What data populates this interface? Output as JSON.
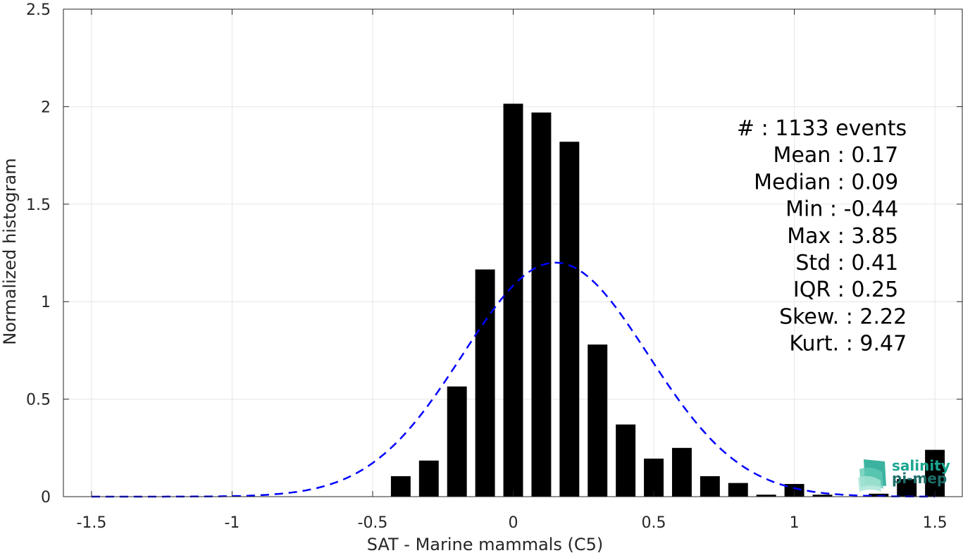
{
  "chart_data": {
    "type": "bar",
    "xlabel": "SAT - Marine mammals (C5)",
    "ylabel": "Normalized histogram",
    "xlim": [
      -1.6,
      1.6
    ],
    "ylim": [
      0,
      2.5
    ],
    "xticks": [
      -1.5,
      -1,
      -0.5,
      0,
      0.5,
      1,
      1.5
    ],
    "xtick_labels": [
      "-1.5",
      "-1",
      "-0.5",
      "0",
      "0.5",
      "1",
      "1.5"
    ],
    "yticks": [
      0,
      0.5,
      1,
      1.5,
      2,
      2.5
    ],
    "ytick_labels": [
      "0",
      "0.5",
      "1",
      "1.5",
      "2",
      "2.5"
    ],
    "grid": true,
    "bar_color": "#000000",
    "bins": [
      -0.4,
      -0.3,
      -0.2,
      -0.1,
      0.0,
      0.1,
      0.2,
      0.3,
      0.4,
      0.5,
      0.6,
      0.7,
      0.8,
      0.9,
      1.0,
      1.1,
      1.2,
      1.3,
      1.4,
      1.5
    ],
    "values": [
      0.105,
      0.185,
      0.565,
      1.165,
      2.015,
      1.97,
      1.82,
      0.78,
      0.37,
      0.195,
      0.25,
      0.105,
      0.07,
      0.01,
      0.065,
      0.01,
      0.0,
      0.015,
      0.09,
      0.24
    ],
    "gaussian_fit": {
      "mean": 0.15,
      "std": 0.33,
      "peak": 1.2,
      "color": "#0000ff",
      "style": "dashed",
      "x_range": [
        -1.5,
        1.5
      ]
    },
    "stats": [
      {
        "label": "#  : 1133 events",
        "right_x": 1.4
      },
      {
        "label": "Mean : 0.17",
        "right_x": 1.37
      },
      {
        "label": "Median : 0.09",
        "right_x": 1.37
      },
      {
        "label": "Min : -0.44",
        "right_x": 1.37
      },
      {
        "label": "Max : 3.85",
        "right_x": 1.37
      },
      {
        "label": "Std : 0.41",
        "right_x": 1.37
      },
      {
        "label": "IQR : 0.25",
        "right_x": 1.37
      },
      {
        "label": "Skew. : 2.22",
        "right_x": 1.4
      },
      {
        "label": "Kurt. : 9.47",
        "right_x": 1.4
      }
    ]
  },
  "logo": {
    "line1": "salinity",
    "line2": "pi-mep",
    "color_primary": "#1aa690",
    "color_secondary": "#1d6f6a"
  }
}
